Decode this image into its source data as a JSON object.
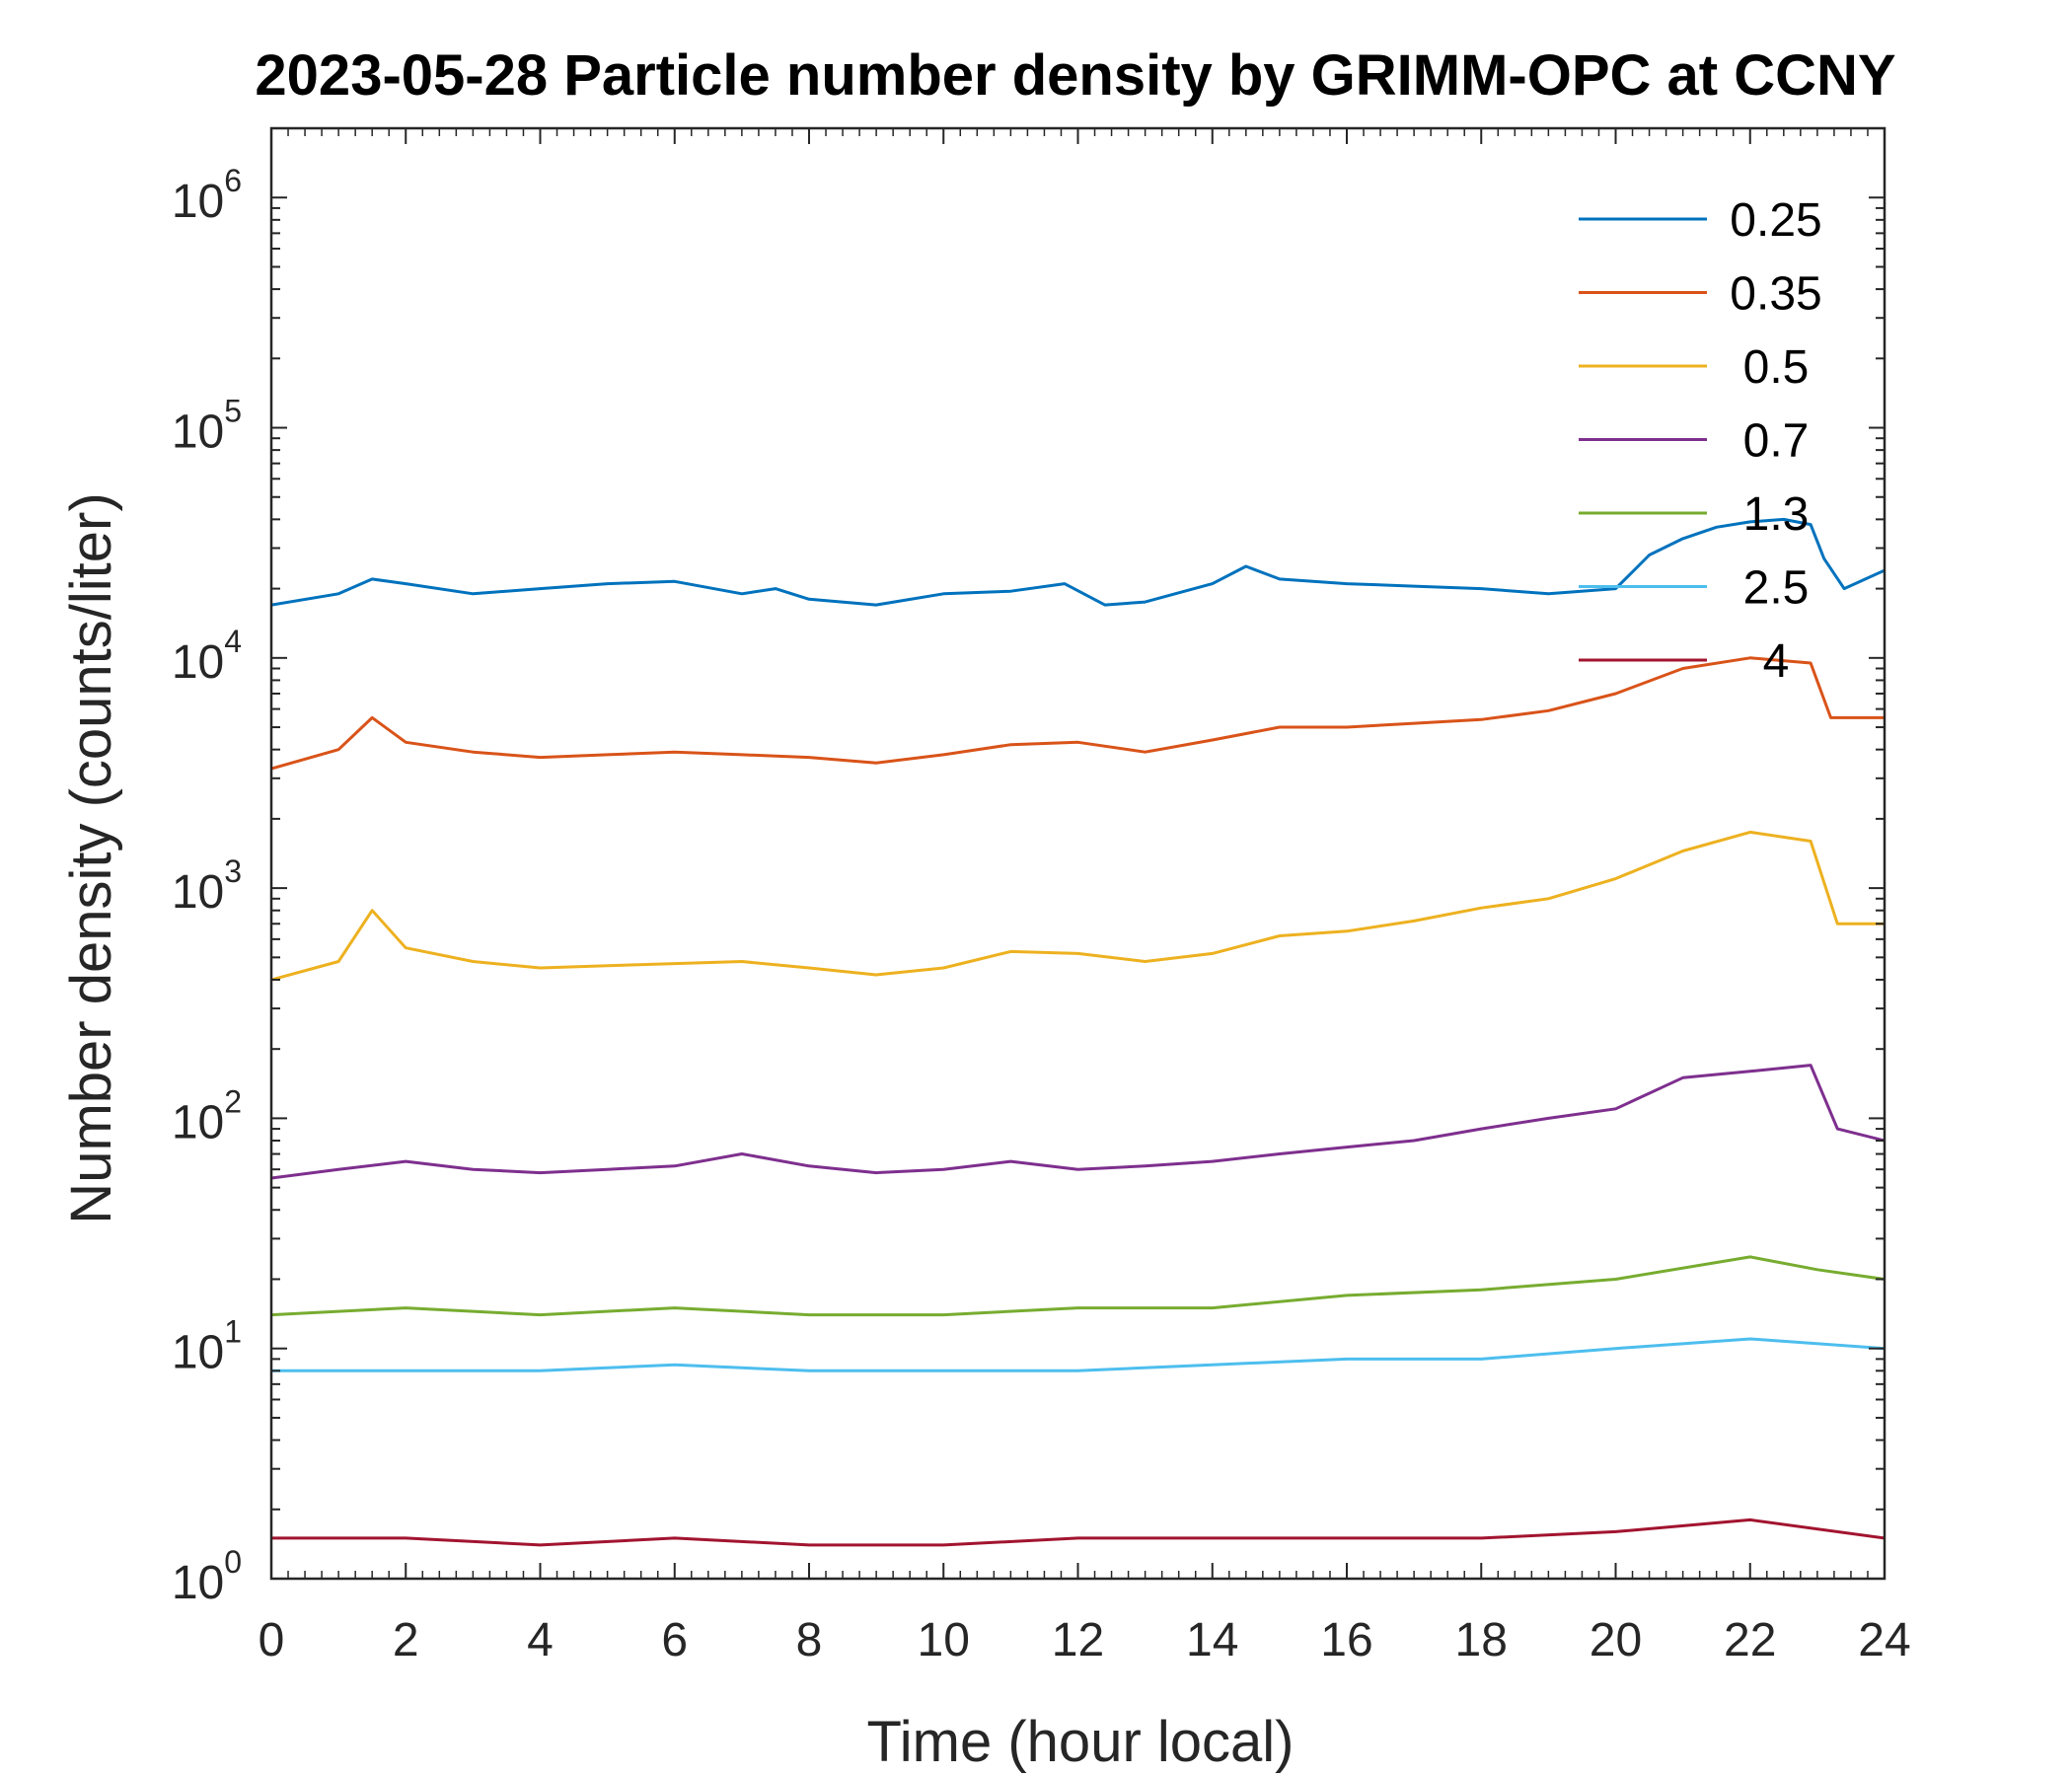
{
  "chart_data": {
    "type": "line",
    "title": "2023-05-28 Particle number density by GRIMM-OPC at CCNY",
    "xlabel": "Time (hour local)",
    "ylabel": "Number density (counts/liter)",
    "xlim": [
      0,
      24
    ],
    "ylim": [
      1,
      2000000
    ],
    "yscale": "log",
    "xticks": [
      0,
      2,
      4,
      6,
      8,
      10,
      12,
      14,
      16,
      18,
      20,
      22,
      24
    ],
    "xtick_labels": [
      "0",
      "2",
      "4",
      "6",
      "8",
      "10",
      "12",
      "14",
      "16",
      "18",
      "20",
      "22",
      "24"
    ],
    "yticks": [
      1,
      10,
      100,
      1000,
      10000,
      100000,
      1000000
    ],
    "ytick_labels": [
      {
        "base": "10",
        "exp": "0"
      },
      {
        "base": "10",
        "exp": "1"
      },
      {
        "base": "10",
        "exp": "2"
      },
      {
        "base": "10",
        "exp": "3"
      },
      {
        "base": "10",
        "exp": "4"
      },
      {
        "base": "10",
        "exp": "5"
      },
      {
        "base": "10",
        "exp": "6"
      }
    ],
    "grid": false,
    "legend_position": "top-right",
    "series": [
      {
        "name": "0.25",
        "color": "#0072BD",
        "x": [
          0,
          1,
          1.5,
          2,
          3,
          4,
          5,
          6,
          7,
          7.5,
          8,
          9,
          10,
          11,
          11.8,
          12.4,
          13,
          14,
          14.5,
          15,
          16,
          17,
          18,
          19,
          20,
          20.5,
          21,
          21.5,
          22,
          22.5,
          22.9,
          23.1,
          23.4,
          24
        ],
        "y": [
          17000,
          19000,
          22000,
          21000,
          19000,
          20000,
          21000,
          21500,
          19000,
          20000,
          18000,
          17000,
          19000,
          19500,
          21000,
          17000,
          17500,
          21000,
          25000,
          22000,
          21000,
          20500,
          20000,
          19000,
          20000,
          28000,
          33000,
          37000,
          39000,
          40000,
          38000,
          27000,
          20000,
          24000
        ]
      },
      {
        "name": "0.35",
        "color": "#D95319",
        "x": [
          0,
          1,
          1.5,
          2,
          3,
          4,
          5,
          6,
          7,
          8,
          9,
          10,
          11,
          12,
          13,
          14,
          15,
          16,
          17,
          18,
          19,
          20,
          21,
          22,
          22.9,
          23.2,
          24
        ],
        "y": [
          3300,
          4000,
          5500,
          4300,
          3900,
          3700,
          3800,
          3900,
          3800,
          3700,
          3500,
          3800,
          4200,
          4300,
          3900,
          4400,
          5000,
          5000,
          5200,
          5400,
          5900,
          7000,
          9000,
          10000,
          9500,
          5500,
          5500
        ]
      },
      {
        "name": "0.5",
        "color": "#EDB120",
        "x": [
          0,
          1,
          1.5,
          2,
          3,
          4,
          5,
          6,
          7,
          8,
          9,
          10,
          11,
          12,
          13,
          14,
          15,
          16,
          17,
          18,
          19,
          20,
          21,
          22,
          22.9,
          23.3,
          24
        ],
        "y": [
          400,
          480,
          800,
          550,
          480,
          450,
          460,
          470,
          480,
          450,
          420,
          450,
          530,
          520,
          480,
          520,
          620,
          650,
          720,
          820,
          900,
          1100,
          1450,
          1750,
          1600,
          700,
          700
        ]
      },
      {
        "name": "0.7",
        "color": "#7E2F8E",
        "x": [
          0,
          1,
          2,
          3,
          4,
          5,
          6,
          7,
          8,
          9,
          10,
          11,
          12,
          13,
          14,
          15,
          16,
          17,
          18,
          19,
          20,
          21,
          22,
          22.9,
          23.3,
          24
        ],
        "y": [
          55,
          60,
          65,
          60,
          58,
          60,
          62,
          70,
          62,
          58,
          60,
          65,
          60,
          62,
          65,
          70,
          75,
          80,
          90,
          100,
          110,
          150,
          160,
          170,
          90,
          80
        ]
      },
      {
        "name": "1.3",
        "color": "#77AC30",
        "x": [
          0,
          2,
          4,
          6,
          8,
          10,
          12,
          14,
          16,
          18,
          20,
          22,
          23,
          24
        ],
        "y": [
          14,
          15,
          14,
          15,
          14,
          14,
          15,
          15,
          17,
          18,
          20,
          25,
          22,
          20
        ]
      },
      {
        "name": "2.5",
        "color": "#4DBEEE",
        "x": [
          0,
          2,
          4,
          6,
          8,
          10,
          12,
          14,
          16,
          18,
          20,
          22,
          24
        ],
        "y": [
          8,
          8,
          8,
          8.5,
          8,
          8,
          8,
          8.5,
          9,
          9,
          10,
          11,
          10
        ]
      },
      {
        "name": "4",
        "color": "#A2142F",
        "x": [
          0,
          2,
          4,
          6,
          8,
          10,
          12,
          14,
          16,
          18,
          20,
          22,
          24
        ],
        "y": [
          1.5,
          1.5,
          1.4,
          1.5,
          1.4,
          1.4,
          1.5,
          1.5,
          1.5,
          1.5,
          1.6,
          1.8,
          1.5
        ]
      }
    ]
  }
}
